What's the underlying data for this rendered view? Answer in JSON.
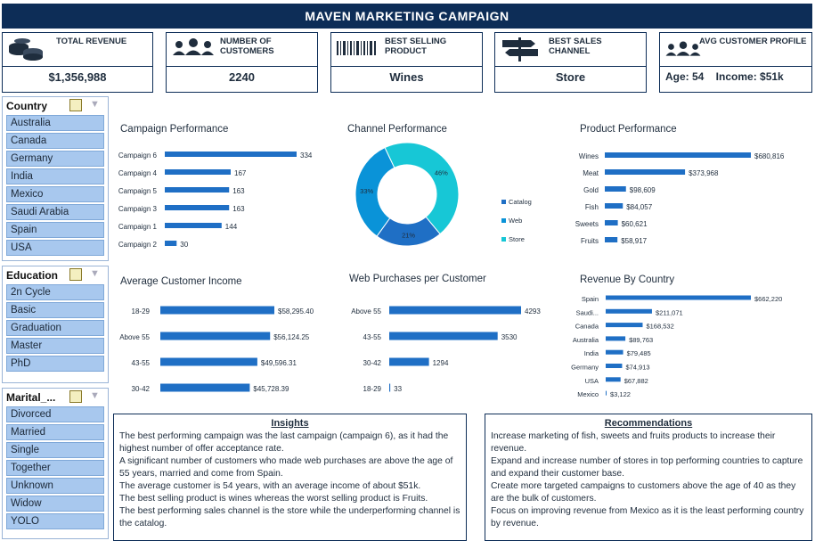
{
  "header": {
    "title": "MAVEN MARKETING CAMPAIGN"
  },
  "kpis": [
    {
      "label": "TOTAL REVENUE",
      "value": "$1,356,988",
      "icon": "coins-icon"
    },
    {
      "label": "NUMBER OF CUSTOMERS",
      "value": "2240",
      "icon": "people-icon"
    },
    {
      "label": "BEST SELLING PRODUCT",
      "value": "Wines",
      "icon": "barcode-icon"
    },
    {
      "label": "BEST SALES CHANNEL",
      "value": "Store",
      "icon": "signpost-icon"
    },
    {
      "label": "AVG CUSTOMER PROFILE",
      "value": "Age: 54    Income: $51k",
      "icon": "people-icon"
    }
  ],
  "slicers": {
    "country": {
      "title": "Country",
      "items": [
        "Australia",
        "Canada",
        "Germany",
        "India",
        "Mexico",
        "Saudi Arabia",
        "Spain",
        "USA"
      ]
    },
    "education": {
      "title": "Education",
      "items": [
        "2n Cycle",
        "Basic",
        "Graduation",
        "Master",
        "PhD"
      ]
    },
    "marital": {
      "title": "Marital_...",
      "items": [
        "Divorced",
        "Married",
        "Single",
        "Together",
        "Unknown",
        "Widow",
        "YOLO"
      ]
    }
  },
  "colors": {
    "navy": "#0d2d57",
    "bar": "#1f6fc5",
    "catalog": "#1f6fc5",
    "web": "#0a93d8",
    "store": "#17c7d6",
    "slicer_item": "#a8c8ee"
  },
  "chart_data": [
    {
      "type": "bar",
      "title": "Campaign Performance",
      "orientation": "horizontal",
      "categories": [
        "Campaign 6",
        "Campaign 4",
        "Campaign 5",
        "Campaign 3",
        "Campaign 1",
        "Campaign 2"
      ],
      "values": [
        334,
        167,
        163,
        163,
        144,
        30
      ],
      "labels": [
        "334",
        "167",
        "163",
        "163",
        "144",
        "30"
      ]
    },
    {
      "type": "pie",
      "title": "Channel Performance",
      "donut": true,
      "categories": [
        "Catalog",
        "Web",
        "Store"
      ],
      "values": [
        21,
        33,
        46
      ],
      "labels": [
        "21%",
        "33%",
        "46%"
      ]
    },
    {
      "type": "bar",
      "title": "Product Performance",
      "orientation": "horizontal",
      "categories": [
        "Wines",
        "Meat",
        "Gold",
        "Fish",
        "Sweets",
        "Fruits"
      ],
      "values": [
        680816,
        373968,
        98609,
        84057,
        60621,
        58917
      ],
      "labels": [
        "$680,816",
        "$373,968",
        "$98,609",
        "$84,057",
        "$60,621",
        "$58,917"
      ]
    },
    {
      "type": "bar",
      "title": "Average Customer Income",
      "orientation": "horizontal",
      "categories": [
        "18-29",
        "Above 55",
        "43-55",
        "30-42"
      ],
      "values": [
        58295.4,
        56124.25,
        49596.31,
        45728.39
      ],
      "labels": [
        "$58,295.40",
        "$56,124.25",
        "$49,596.31",
        "$45,728.39"
      ]
    },
    {
      "type": "bar",
      "title": "Web Purchases per Customer",
      "orientation": "horizontal",
      "categories": [
        "Above 55",
        "43-55",
        "30-42",
        "18-29"
      ],
      "values": [
        4293,
        3530,
        1294,
        33
      ],
      "labels": [
        "4293",
        "3530",
        "1294",
        "33"
      ]
    },
    {
      "type": "bar",
      "title": "Revenue By Country",
      "orientation": "horizontal",
      "categories": [
        "Spain",
        "Saudi...",
        "Canada",
        "Australia",
        "India",
        "Germany",
        "USA",
        "Mexico"
      ],
      "values": [
        662220,
        211071,
        168532,
        89763,
        79485,
        74913,
        67882,
        3122
      ],
      "labels": [
        "$662,220",
        "$211,071",
        "$168,532",
        "$89,763",
        "$79,485",
        "$74,913",
        "$67,882",
        "$3,122"
      ]
    }
  ],
  "insights": {
    "title": "Insights",
    "lines": [
      "The best performing campaign was the last campaign (campaign 6), as it had the highest number of offer acceptance rate.",
      "A significant number of customers who made web purchases are above the age of 55 years, married and come from Spain.",
      "The average customer is 54 years, with an average income of about $51k.",
      "The best selling product is wines whereas the worst selling product is Fruits.",
      "The best performing sales channel is the store while the underperforming channel is the catalog."
    ]
  },
  "recommendations": {
    "title": "Recommendations",
    "lines": [
      "Increase marketing of fish, sweets and fruits products to increase their revenue.",
      "Expand and increase number of stores in top performing countries to capture and expand their customer base.",
      "Create more targeted campaigns to customers above the age of 40 as they are the bulk of customers.",
      "Focus on improving revenue from Mexico as it is the least performing country by revenue."
    ]
  }
}
